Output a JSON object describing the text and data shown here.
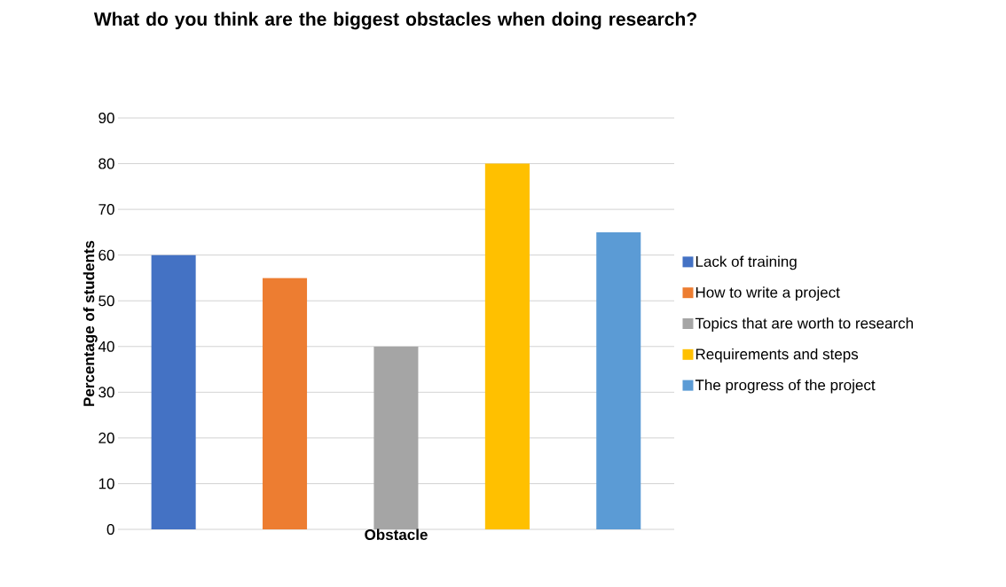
{
  "chart_data": {
    "type": "bar",
    "title": "What do you think are the biggest obstacles when doing research?",
    "xlabel": "Obstacle",
    "ylabel": "Percentage of students",
    "categories": [
      null
    ],
    "series": [
      {
        "name": "Lack of training",
        "color": "#4472c4",
        "values": [
          60
        ]
      },
      {
        "name": "How to write a project",
        "color": "#ed7d31",
        "values": [
          55
        ]
      },
      {
        "name": "Topics that are worth to research",
        "color": "#a5a5a5",
        "values": [
          40
        ]
      },
      {
        "name": "Requirements and steps",
        "color": "#ffc000",
        "values": [
          80
        ]
      },
      {
        "name": "The progress of the project",
        "color": "#5b9bd5",
        "values": [
          65
        ]
      }
    ],
    "ylim": [
      0,
      90
    ],
    "yticks": [
      0,
      10,
      20,
      30,
      40,
      50,
      60,
      70,
      80,
      90
    ],
    "grid": "y",
    "legend": "right"
  }
}
